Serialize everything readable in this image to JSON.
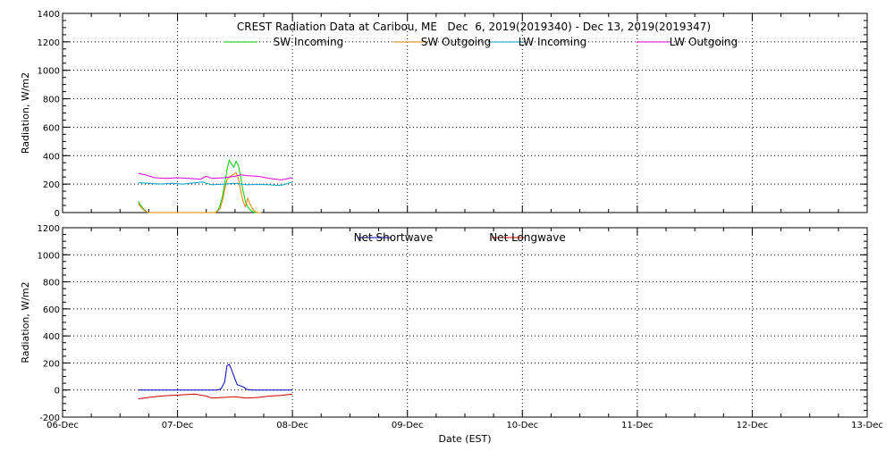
{
  "chart_data": [
    {
      "type": "line",
      "title": "CREST Radiation Data at Caribou, ME   Dec  6, 2019(2019340) - Dec 13, 2019(2019347)",
      "xlabel": "",
      "ylabel": "Radiation, W/m2",
      "xlim": [
        0,
        7
      ],
      "ylim": [
        0,
        1400
      ],
      "yticks": [
        "0",
        "200",
        "400",
        "600",
        "800",
        "1000",
        "1200",
        "1400"
      ],
      "grid": true,
      "legend": "top",
      "series": [
        {
          "name": "SW Incoming",
          "color": "#00d000",
          "x": [
            0.66,
            0.67,
            0.69,
            0.71,
            0.73,
            0.75,
            0.77,
            1.33,
            1.35,
            1.37,
            1.39,
            1.41,
            1.43,
            1.45,
            1.47,
            1.49,
            1.51,
            1.53,
            1.55,
            1.57,
            1.59,
            1.61,
            1.63,
            1.65,
            1.67,
            1.69,
            1.71,
            1.73
          ],
          "y": [
            80,
            60,
            40,
            20,
            5,
            0,
            0,
            0,
            15,
            50,
            110,
            200,
            300,
            370,
            340,
            320,
            360,
            330,
            250,
            150,
            80,
            40,
            20,
            8,
            0,
            0,
            0,
            0
          ]
        },
        {
          "name": "SW Outgoing",
          "color": "#e08000",
          "x": [
            0.66,
            0.67,
            0.69,
            0.71,
            0.73,
            0.75,
            0.77,
            1.33,
            1.35,
            1.37,
            1.39,
            1.41,
            1.43,
            1.45,
            1.47,
            1.49,
            1.51,
            1.53,
            1.55,
            1.57,
            1.59,
            1.61,
            1.63,
            1.65,
            1.67,
            1.69,
            1.71,
            1.73
          ],
          "y": [
            70,
            50,
            30,
            15,
            5,
            0,
            0,
            0,
            10,
            30,
            80,
            160,
            230,
            250,
            260,
            270,
            280,
            240,
            150,
            80,
            40,
            100,
            60,
            30,
            10,
            0,
            0,
            0
          ]
        },
        {
          "name": "LW Incoming",
          "color": "#00a0c8",
          "x": [
            0.66,
            0.75,
            0.85,
            0.95,
            1.05,
            1.15,
            1.22,
            1.25,
            1.3,
            1.4,
            1.5,
            1.55,
            1.6,
            1.7,
            1.8,
            1.9,
            2.0
          ],
          "y": [
            210,
            205,
            200,
            205,
            200,
            210,
            215,
            205,
            195,
            200,
            205,
            200,
            195,
            198,
            195,
            190,
            215
          ]
        },
        {
          "name": "LW Outgoing",
          "color": "#e000e0",
          "x": [
            0.66,
            0.72,
            0.8,
            0.9,
            1.0,
            1.1,
            1.2,
            1.25,
            1.3,
            1.4,
            1.5,
            1.55,
            1.6,
            1.7,
            1.8,
            1.9,
            2.0
          ],
          "y": [
            275,
            265,
            245,
            240,
            245,
            240,
            235,
            255,
            240,
            245,
            255,
            265,
            260,
            255,
            240,
            230,
            245
          ]
        }
      ]
    },
    {
      "type": "line",
      "title": "",
      "xlabel": "Date (EST)",
      "ylabel": "Radiation, W/m2",
      "xlim": [
        0,
        7
      ],
      "ylim": [
        -200,
        1200
      ],
      "xticks": [
        "06-Dec",
        "07-Dec",
        "08-Dec",
        "09-Dec",
        "10-Dec",
        "11-Dec",
        "12-Dec",
        "13-Dec"
      ],
      "yticks": [
        "-200",
        "0",
        "200",
        "400",
        "600",
        "800",
        "1000",
        "1200"
      ],
      "grid": true,
      "legend": "top",
      "series": [
        {
          "name": "Net Shortwave",
          "color": "#0000c0",
          "x": [
            0.66,
            1.35,
            1.38,
            1.41,
            1.43,
            1.45,
            1.47,
            1.5,
            1.52,
            1.55,
            1.58,
            1.6,
            1.65,
            2.0
          ],
          "y": [
            0,
            0,
            10,
            60,
            180,
            190,
            150,
            80,
            40,
            30,
            20,
            5,
            0,
            0
          ]
        },
        {
          "name": "Net Longwave",
          "color": "#d00000",
          "x": [
            0.66,
            0.75,
            0.85,
            0.95,
            1.05,
            1.15,
            1.25,
            1.3,
            1.4,
            1.5,
            1.6,
            1.7,
            1.8,
            1.9,
            1.95,
            2.0
          ],
          "y": [
            -65,
            -55,
            -45,
            -40,
            -35,
            -30,
            -45,
            -60,
            -55,
            -50,
            -60,
            -55,
            -45,
            -40,
            -35,
            -30
          ]
        }
      ]
    }
  ]
}
